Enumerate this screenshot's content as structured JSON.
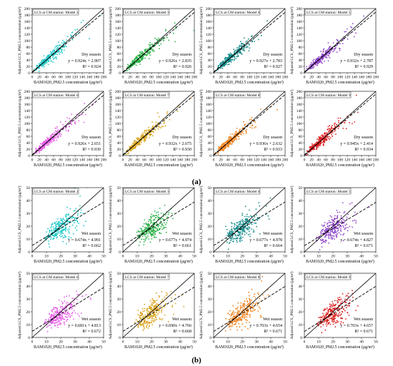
{
  "figure": {
    "panel_labels": [
      "(a)",
      "(b)"
    ]
  },
  "chart_data": [
    {
      "type": "scatter",
      "panel": "a",
      "model_label": "LCS at CM station: Model 2",
      "season": "Dry season",
      "equation": "y = 0.924x + 2.907",
      "r2": "R² = 0.924",
      "color": "#1fc8c8",
      "xlim": [
        0,
        200
      ],
      "ylim": [
        0,
        200
      ],
      "xticks": [
        0,
        20,
        40,
        60,
        80,
        100,
        120,
        140,
        160,
        180,
        200
      ],
      "yticks": [
        0,
        20,
        40,
        60,
        80,
        100,
        120,
        140,
        160,
        180,
        200
      ],
      "xlabel": "BAM1020_PM2.5 concentration (µg/m³)",
      "ylabel": "Adjusted LCS_PM2.5 concentration (µg/m³)",
      "slope": 0.924,
      "intercept": 2.907
    },
    {
      "type": "scatter",
      "panel": "a",
      "model_label": "LCS at CM station: Model 3",
      "season": "Dry season",
      "equation": "y = 0.926x + 2.835",
      "r2": "R² = 0.926",
      "color": "#2db34a",
      "xlim": [
        0,
        200
      ],
      "ylim": [
        0,
        200
      ],
      "xticks": [
        0,
        20,
        40,
        60,
        80,
        100,
        120,
        140,
        160,
        180,
        200
      ],
      "yticks": [
        0,
        20,
        40,
        60,
        80,
        100,
        120,
        140,
        160,
        180,
        200
      ],
      "xlabel": "BAM1020_PM2.5 concentration (µg/m³)",
      "ylabel": "Adjusted LCS_PM2.5 concentration (µg/m³)",
      "slope": 0.926,
      "intercept": 2.835
    },
    {
      "type": "scatter",
      "panel": "a",
      "model_label": "LCS at CM station: Model 4",
      "season": "Dry season",
      "equation": "y = 0.927x + 2.783",
      "r2": "R² = 0.927",
      "color": "#138a8a",
      "xlim": [
        0,
        200
      ],
      "ylim": [
        0,
        200
      ],
      "xticks": [
        0,
        20,
        40,
        60,
        80,
        100,
        120,
        140,
        160,
        180,
        200
      ],
      "yticks": [
        0,
        20,
        40,
        60,
        80,
        100,
        120,
        140,
        160,
        180,
        200
      ],
      "xlabel": "BAM1020_PM2.5 concentration (µg/m³)",
      "ylabel": "Adjusted LCS_PM2.5 concentration (µg/m³)",
      "slope": 0.927,
      "intercept": 2.783
    },
    {
      "type": "scatter",
      "panel": "a",
      "model_label": "LCS at CM station: Model 5",
      "season": "Dry season",
      "equation": "y = 0.932x + 2.787",
      "r2": "R² = 0.929",
      "color": "#8e44c8",
      "xlim": [
        0,
        200
      ],
      "ylim": [
        0,
        200
      ],
      "xticks": [
        0,
        20,
        40,
        60,
        80,
        100,
        120,
        140,
        160,
        180,
        200
      ],
      "yticks": [
        0,
        20,
        40,
        60,
        80,
        100,
        120,
        140,
        160,
        180,
        200
      ],
      "xlabel": "BAM1020_PM2.5 concentration (µg/m³)",
      "ylabel": "Adjusted LCS_PM2.5 concentration (µg/m³)",
      "slope": 0.932,
      "intercept": 2.787
    },
    {
      "type": "scatter",
      "panel": "a",
      "model_label": "LCS at CM station: Model 6",
      "season": "Dry season",
      "equation": "y = 0.926x + 2.651",
      "r2": "R² = 0.930",
      "color": "#e65ce6",
      "xlim": [
        0,
        200
      ],
      "ylim": [
        0,
        200
      ],
      "xticks": [
        0,
        20,
        40,
        60,
        80,
        100,
        120,
        140,
        160,
        180,
        200
      ],
      "yticks": [
        0,
        20,
        40,
        60,
        80,
        100,
        120,
        140,
        160,
        180,
        200
      ],
      "xlabel": "BAM1020_PM2.5 concentration (µg/m³)",
      "ylabel": "Adjusted LCS_PM2.5 concentration (µg/m³)",
      "slope": 0.926,
      "intercept": 2.651
    },
    {
      "type": "scatter",
      "panel": "a",
      "model_label": "LCS at CM station: Model 7",
      "season": "Dry season",
      "equation": "y = 0.932x + 2.675",
      "r2": "R² = 0.930",
      "color": "#d9a21a",
      "xlim": [
        0,
        200
      ],
      "ylim": [
        0,
        200
      ],
      "xticks": [
        0,
        20,
        40,
        60,
        80,
        100,
        120,
        140,
        160,
        180,
        200
      ],
      "yticks": [
        0,
        20,
        40,
        60,
        80,
        100,
        120,
        140,
        160,
        180,
        200
      ],
      "xlabel": "BAM1020_PM2.5 concentration (µg/m³)",
      "ylabel": "Adjusted LCS_PM2.5 concentration (µg/m³)",
      "slope": 0.932,
      "intercept": 2.675
    },
    {
      "type": "scatter",
      "panel": "a",
      "model_label": "LCS at CM station: Model 8",
      "season": "Dry season",
      "equation": "y = 0.936x + 2.632",
      "r2": "R² = 0.933",
      "color": "#f07f1a",
      "xlim": [
        0,
        200
      ],
      "ylim": [
        0,
        200
      ],
      "xticks": [
        0,
        20,
        40,
        60,
        80,
        100,
        120,
        140,
        160,
        180,
        200
      ],
      "yticks": [
        0,
        20,
        40,
        60,
        80,
        100,
        120,
        140,
        160,
        180,
        200
      ],
      "xlabel": "BAM1020_PM2.5 concentration (µg/m³)",
      "ylabel": "Adjusted LCS_PM2.5 concentration (µg/m³)",
      "slope": 0.936,
      "intercept": 2.632
    },
    {
      "type": "scatter",
      "panel": "a",
      "model_label": "LCS at CM station: Model 9",
      "season": "Dry season",
      "equation": "y = 0.945x + 2.414",
      "r2": "R² = 0.934",
      "color": "#d91c1c",
      "xlim": [
        0,
        200
      ],
      "ylim": [
        0,
        200
      ],
      "xticks": [
        0,
        20,
        40,
        60,
        80,
        100,
        120,
        140,
        160,
        180,
        200
      ],
      "yticks": [
        0,
        20,
        40,
        60,
        80,
        100,
        120,
        140,
        160,
        180,
        200
      ],
      "xlabel": "BAM1020_PM2.5 concentration (µg/m³)",
      "ylabel": "Adjusted LCS_PM2.5 concentration (µg/m³)",
      "slope": 0.945,
      "intercept": 2.414
    },
    {
      "type": "scatter",
      "panel": "b",
      "model_label": "LCS at CM station: Model 2",
      "season": "Wet season",
      "equation": "y = 0.674x + 4.991",
      "r2": "R² = 0.662",
      "color": "#1fc8c8",
      "xlim": [
        0,
        50
      ],
      "ylim": [
        0,
        50
      ],
      "xticks": [
        0,
        10,
        20,
        30,
        40,
        50
      ],
      "yticks": [
        0,
        10,
        20,
        30,
        40,
        50
      ],
      "xlabel": "BAM1020_PM2.5 concentration (µg/m³)",
      "ylabel": "Adjusted LCS_PM2.5 concentration (µg/m³)",
      "slope": 0.674,
      "intercept": 4.991
    },
    {
      "type": "scatter",
      "panel": "b",
      "model_label": "LCS at CM station: Model 3",
      "season": "Wet season",
      "equation": "y = 0.677x + 4.974",
      "r2": "R² = 0.661",
      "color": "#2db34a",
      "xlim": [
        0,
        50
      ],
      "ylim": [
        0,
        50
      ],
      "xticks": [
        0,
        10,
        20,
        30,
        40,
        50
      ],
      "yticks": [
        0,
        10,
        20,
        30,
        40,
        50
      ],
      "xlabel": "BAM1020_PM2.5 concentration (µg/m³)",
      "ylabel": "Adjusted LCS_PM2.5 concentration (µg/m³)",
      "slope": 0.677,
      "intercept": 4.974
    },
    {
      "type": "scatter",
      "panel": "b",
      "model_label": "LCS at CM station: Model 4",
      "season": "Wet season",
      "equation": "y = 0.677x + 4.978",
      "r2": "R² = 0.664",
      "color": "#138a8a",
      "xlim": [
        0,
        50
      ],
      "ylim": [
        0,
        50
      ],
      "xticks": [
        0,
        10,
        20,
        30,
        40,
        50
      ],
      "yticks": [
        0,
        10,
        20,
        30,
        40,
        50
      ],
      "xlabel": "BAM1020_PM2.5 concentration (µg/m³)",
      "ylabel": "Adjusted LCS_PM2.5 concentration (µg/m³)",
      "slope": 0.677,
      "intercept": 4.978
    },
    {
      "type": "scatter",
      "panel": "b",
      "model_label": "LCS at CM station: Model 5",
      "season": "Wet season",
      "equation": "y = 0.674x + 4.827",
      "r2": "R² = 0.671",
      "color": "#8e44c8",
      "xlim": [
        0,
        50
      ],
      "ylim": [
        0,
        50
      ],
      "xticks": [
        0,
        10,
        20,
        30,
        40,
        50
      ],
      "yticks": [
        0,
        10,
        20,
        30,
        40,
        50
      ],
      "xlabel": "BAM1020_PM2.5 concentration (µg/m³)",
      "ylabel": "Adjusted LCS_PM2.5 concentration (µg/m³)",
      "slope": 0.674,
      "intercept": 4.827
    },
    {
      "type": "scatter",
      "panel": "b",
      "model_label": "LCS at CM station: Model 6",
      "season": "Wet season",
      "equation": "y = 0.681x + 4.813",
      "r2": "R² = 0.672",
      "color": "#e65ce6",
      "xlim": [
        0,
        50
      ],
      "ylim": [
        0,
        50
      ],
      "xticks": [
        0,
        10,
        20,
        30,
        40,
        50
      ],
      "yticks": [
        0,
        10,
        20,
        30,
        40,
        50
      ],
      "xlabel": "BAM1020_PM2.5 concentration (µg/m³)",
      "ylabel": "Adjusted LCS_PM2.5 concentration (µg/m³)",
      "slope": 0.681,
      "intercept": 4.813
    },
    {
      "type": "scatter",
      "panel": "b",
      "model_label": "LCS at CM station: Model 7",
      "season": "Wet season",
      "equation": "y = 0.690x + 4.766",
      "r2": "R² = 0.668",
      "color": "#d9a21a",
      "xlim": [
        0,
        50
      ],
      "ylim": [
        0,
        50
      ],
      "xticks": [
        0,
        10,
        20,
        30,
        40,
        50
      ],
      "yticks": [
        0,
        10,
        20,
        30,
        40,
        50
      ],
      "xlabel": "BAM1020_PM2.5 concentration (µg/m³)",
      "ylabel": "Adjusted LCS_PM2.5 concentration (µg/m³)",
      "slope": 0.69,
      "intercept": 4.766
    },
    {
      "type": "scatter",
      "panel": "b",
      "model_label": "LCS at CM station: Model 8",
      "season": "Wet season",
      "equation": "y = 0.703x + 4.654",
      "r2": "R² = 0.671",
      "color": "#f07f1a",
      "xlim": [
        0,
        50
      ],
      "ylim": [
        0,
        50
      ],
      "xticks": [
        0,
        10,
        20,
        30,
        40,
        50
      ],
      "yticks": [
        0,
        10,
        20,
        30,
        40,
        50
      ],
      "xlabel": "BAM1020_PM2.5 concentration (µg/m³)",
      "ylabel": "Adjusted LCS_PM2.5 concentration (µg/m³)",
      "slope": 0.703,
      "intercept": 4.654
    },
    {
      "type": "scatter",
      "panel": "b",
      "model_label": "LCS at CM station: Model 9",
      "season": "Wet season",
      "equation": "y = 0.703x + 4.657",
      "r2": "R² = 0.671",
      "color": "#d91c1c",
      "xlim": [
        0,
        50
      ],
      "ylim": [
        0,
        50
      ],
      "xticks": [
        0,
        10,
        20,
        30,
        40,
        50
      ],
      "yticks": [
        0,
        10,
        20,
        30,
        40,
        50
      ],
      "xlabel": "BAM1020_PM2.5 concentration (µg/m³)",
      "ylabel": "Adjusted LCS_PM2.5 concentration (µg/m³)",
      "slope": 0.703,
      "intercept": 4.657
    }
  ]
}
